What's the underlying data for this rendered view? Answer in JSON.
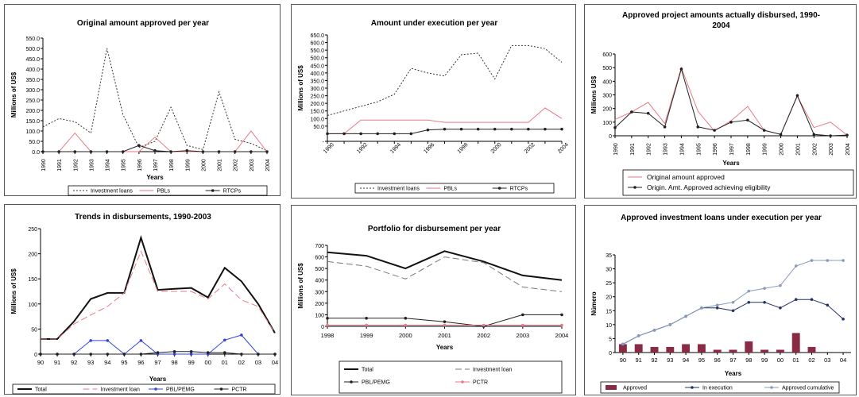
{
  "chart_data": [
    {
      "type": "line",
      "title": "Original amount approved per year",
      "xlabel": "Years",
      "ylabel": "Millions of US$",
      "ylim": [
        0,
        550
      ],
      "yticks": [
        "0.0",
        "50.0",
        "100.0",
        "150.0",
        "200.0",
        "250.0",
        "300.0",
        "350.0",
        "400.0",
        "450.0",
        "500.0",
        "550.0"
      ],
      "ytick_values": [
        0,
        50,
        100,
        150,
        200,
        250,
        300,
        350,
        400,
        450,
        500,
        550
      ],
      "categories": [
        "1990",
        "1991",
        "1992",
        "1993",
        "1994",
        "1995",
        "1996",
        "1997",
        "1998",
        "1999",
        "2000",
        "2001",
        "2002",
        "2003",
        "2004"
      ],
      "series": [
        {
          "name": "Investment loans",
          "style": "dotted",
          "color": "#333333",
          "values": [
            120,
            160,
            145,
            90,
            500,
            180,
            20,
            50,
            215,
            30,
            10,
            290,
            60,
            40,
            5
          ]
        },
        {
          "name": "PBLs",
          "style": "solid",
          "color": "#e87a85",
          "values": [
            0,
            0,
            90,
            0,
            0,
            0,
            0,
            70,
            0,
            0,
            0,
            0,
            0,
            100,
            0
          ]
        },
        {
          "name": "RTCPs",
          "style": "marker",
          "color": "#222222",
          "values": [
            0,
            0,
            0,
            0,
            0,
            0,
            30,
            5,
            0,
            5,
            0,
            0,
            0,
            0,
            0
          ]
        }
      ],
      "legend_position": "bottom"
    },
    {
      "type": "line",
      "title": "Amount under execution per year",
      "xlabel": "",
      "ylabel": "Millions of US$",
      "ylim": [
        -50,
        650
      ],
      "yticks": [
        "-",
        "50.0",
        "100.0",
        "150.0",
        "200.0",
        "250.0",
        "300.0",
        "350.0",
        "400.0",
        "450.0",
        "500.0",
        "550.0",
        "600.0",
        "650.0"
      ],
      "ytick_values": [
        -50,
        50,
        100,
        150,
        200,
        250,
        300,
        350,
        400,
        450,
        500,
        550,
        600,
        650
      ],
      "categories": [
        "1990",
        "1991",
        "1992",
        "1993",
        "1994",
        "1995",
        "1996",
        "1997",
        "1998",
        "1999",
        "2000",
        "2001",
        "2002",
        "2003",
        "2004"
      ],
      "xtick_labels": [
        "1990",
        "",
        "1992",
        "",
        "1994",
        "",
        "1996",
        "",
        "1998",
        "",
        "2000",
        "",
        "2002",
        "",
        "2004"
      ],
      "series": [
        {
          "name": "Investment loans",
          "style": "dotted",
          "color": "#333333",
          "values": [
            120,
            150,
            180,
            210,
            260,
            430,
            400,
            380,
            520,
            530,
            360,
            580,
            580,
            560,
            470
          ]
        },
        {
          "name": "PBLs",
          "style": "solid",
          "color": "#e87a85",
          "values": [
            0,
            0,
            90,
            90,
            90,
            90,
            90,
            75,
            75,
            75,
            75,
            75,
            75,
            170,
            100
          ]
        },
        {
          "name": "RTCPs",
          "style": "marker",
          "color": "#222222",
          "values": [
            0,
            0,
            0,
            0,
            0,
            0,
            25,
            30,
            30,
            30,
            30,
            30,
            30,
            30,
            30
          ]
        }
      ],
      "legend_position": "bottom"
    },
    {
      "type": "line",
      "title": "Approved project amounts actually disbursed, 1990-2004",
      "title_lines": [
        "Approved project amounts actually disbursed, 1990-",
        "2004"
      ],
      "xlabel": "Years",
      "ylabel": "Millions US$",
      "ylim": [
        0,
        600
      ],
      "yticks": [
        "0",
        "100",
        "200",
        "300",
        "400",
        "500",
        "600"
      ],
      "ytick_values": [
        0,
        100,
        200,
        300,
        400,
        500,
        600
      ],
      "categories": [
        "1990",
        "1991",
        "1992",
        "1993",
        "1994",
        "1995",
        "1996",
        "1997",
        "1998",
        "1999",
        "2000",
        "2001",
        "2002",
        "2003",
        "2004"
      ],
      "series": [
        {
          "name": "Original amount approved",
          "style": "solid",
          "color": "#e87a85",
          "values": [
            120,
            175,
            245,
            90,
            500,
            180,
            35,
            110,
            215,
            40,
            10,
            290,
            60,
            100,
            5
          ]
        },
        {
          "name": "Origin. Amt. Approved achieving eligibility",
          "style": "marker",
          "color": "#222222",
          "values": [
            60,
            175,
            165,
            65,
            490,
            65,
            40,
            100,
            115,
            40,
            10,
            295,
            10,
            0,
            5
          ]
        }
      ],
      "legend_position": "bottom-right"
    },
    {
      "type": "line",
      "title": "Trends in disbursements, 1990-2003",
      "xlabel": "Years",
      "ylabel": "Millions of US$",
      "ylim": [
        0,
        250
      ],
      "yticks": [
        "0",
        "50",
        "100",
        "150",
        "200",
        "250"
      ],
      "ytick_values": [
        0,
        50,
        100,
        150,
        200,
        250
      ],
      "categories": [
        "90",
        "91",
        "92",
        "93",
        "94",
        "95",
        "96",
        "97",
        "98",
        "99",
        "00",
        "01",
        "02",
        "03",
        "04"
      ],
      "series": [
        {
          "name": "Total",
          "style": "bold",
          "color": "#111111",
          "values": [
            30,
            30,
            65,
            110,
            122,
            122,
            232,
            128,
            130,
            132,
            113,
            172,
            145,
            100,
            42
          ]
        },
        {
          "name": "Investment loan",
          "style": "dashed",
          "color": "#e87a85",
          "values": [
            30,
            30,
            60,
            78,
            95,
            122,
            205,
            125,
            125,
            125,
            110,
            140,
            108,
            95,
            42
          ]
        },
        {
          "name": "PBL/PEMG",
          "style": "marker",
          "color": "#3344dd",
          "values": [
            0,
            0,
            0,
            27,
            27,
            0,
            27,
            0,
            0,
            0,
            0,
            28,
            38,
            0,
            0
          ]
        },
        {
          "name": "PCTR",
          "style": "marker",
          "color": "#222222",
          "values": [
            0,
            0,
            0,
            0,
            0,
            0,
            0,
            3,
            5,
            5,
            3,
            3,
            0,
            0,
            0
          ]
        }
      ],
      "legend_position": "bottom"
    },
    {
      "type": "line",
      "title": "Portfolio for disbursement per year",
      "xlabel": "Years",
      "ylabel": "Millions of US$",
      "ylim": [
        0,
        700
      ],
      "yticks": [
        "0",
        "100",
        "200",
        "300",
        "400",
        "500",
        "600",
        "700"
      ],
      "ytick_values": [
        0,
        100,
        200,
        300,
        400,
        500,
        600,
        700
      ],
      "categories": [
        "1998",
        "1999",
        "2000",
        "2001",
        "2002",
        "2003",
        "2004"
      ],
      "series": [
        {
          "name": "Total",
          "style": "bold",
          "color": "#111111",
          "values": [
            640,
            610,
            500,
            650,
            560,
            440,
            400
          ]
        },
        {
          "name": "Investment loan",
          "style": "dashed",
          "color": "#777777",
          "values": [
            560,
            520,
            410,
            600,
            550,
            340,
            300
          ]
        },
        {
          "name": "PBL/PEMG",
          "style": "marker",
          "color": "#222222",
          "values": [
            70,
            70,
            70,
            40,
            0,
            100,
            100
          ]
        },
        {
          "name": "PCTR",
          "style": "marker",
          "color": "#e87a85",
          "values": [
            10,
            10,
            10,
            10,
            10,
            10,
            10
          ]
        }
      ],
      "legend_position": "bottom"
    },
    {
      "type": "bar+line",
      "title": "Approved investment loans under execution per year",
      "xlabel": "Years",
      "ylabel": "Número",
      "ylim": [
        0,
        35
      ],
      "yticks": [
        "0",
        "5",
        "10",
        "15",
        "20",
        "25",
        "30",
        "35"
      ],
      "ytick_values": [
        0,
        5,
        10,
        15,
        20,
        25,
        30,
        35
      ],
      "categories": [
        "90",
        "91",
        "92",
        "93",
        "94",
        "95",
        "96",
        "97",
        "98",
        "99",
        "00",
        "01",
        "02",
        "03",
        "04"
      ],
      "series": [
        {
          "name": "Approved",
          "style": "bar",
          "color": "#8a2b45",
          "values": [
            3,
            3,
            2,
            2,
            3,
            3,
            1,
            1,
            4,
            1,
            1,
            7,
            2,
            0,
            0
          ]
        },
        {
          "name": "In execution",
          "style": "marker",
          "color": "#223366",
          "values": [
            3,
            6,
            8,
            10,
            13,
            16,
            16,
            15,
            18,
            18,
            16,
            19,
            19,
            17,
            12
          ]
        },
        {
          "name": "Approved cumulative",
          "style": "marker",
          "color": "#8899bb",
          "values": [
            3,
            6,
            8,
            10,
            13,
            16,
            17,
            18,
            22,
            23,
            24,
            31,
            33,
            33,
            33
          ]
        }
      ],
      "legend_position": "bottom"
    }
  ]
}
